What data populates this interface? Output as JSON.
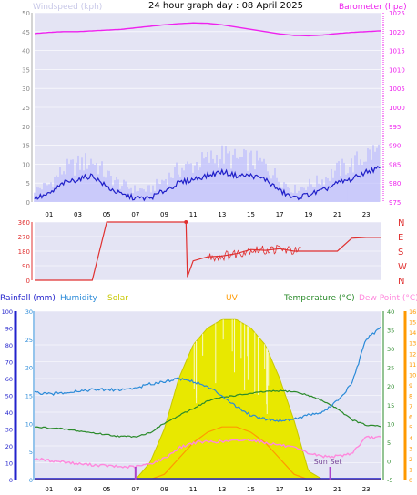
{
  "title": "24 hour graph day : 08 April 2025",
  "panel_wind": {
    "left_label": "Windspeed (kph)",
    "right_label": "Barometer (hpa)",
    "left_ticks": [
      "0",
      "5",
      "10",
      "15",
      "20",
      "25",
      "30",
      "35",
      "40",
      "45",
      "50"
    ],
    "right_ticks": [
      "975",
      "980",
      "985",
      "990",
      "995",
      "1000",
      "1005",
      "1010",
      "1015",
      "1020",
      "1025"
    ]
  },
  "panel_dir": {
    "left_ticks": [
      "0",
      "90",
      "180",
      "270",
      "360"
    ],
    "compass": [
      "N",
      "W",
      "S",
      "E",
      "N"
    ]
  },
  "panel_bottom": {
    "legend": [
      "Rainfall (mm)",
      "Humidity",
      "Solar",
      "UV",
      "Temperature (°C)",
      "Dew Point (°C)"
    ],
    "rain_ticks": [
      "0",
      "10",
      "20",
      "30",
      "40",
      "50",
      "60",
      "70",
      "80",
      "90",
      "100"
    ],
    "hum_ticks": [
      "0",
      "5",
      "10",
      "15",
      "20",
      "25",
      "30"
    ],
    "temp_ticks": [
      "-5",
      "0",
      "5",
      "10",
      "15",
      "20",
      "25",
      "30",
      "35",
      "40"
    ],
    "dew_ticks": [
      "0",
      "1",
      "2",
      "3",
      "4",
      "5",
      "6",
      "7",
      "8",
      "9",
      "10",
      "11",
      "12",
      "13",
      "14",
      "15",
      "16"
    ],
    "sun_set_label": "Sun Set"
  },
  "x_ticks": [
    "01",
    "03",
    "05",
    "07",
    "09",
    "11",
    "13",
    "15",
    "17",
    "19",
    "21",
    "23"
  ],
  "colors": {
    "wind_avg": "#1f1fc8",
    "wind_gust": "#b8b8ff",
    "barometer": "#ee22ee",
    "direction": "#e03030",
    "temperature": "#2a8a2a",
    "humidity": "#2a8ad8",
    "dew_point": "#ff88dd",
    "solar": "#e8e800",
    "uv": "#ff9900",
    "rain": "#2222cc"
  },
  "chart_data": [
    {
      "type": "line",
      "x": [
        0,
        1,
        2,
        3,
        4,
        5,
        6,
        7,
        8,
        9,
        10,
        11,
        12,
        13,
        14,
        15,
        16,
        17,
        18,
        19,
        20,
        21,
        22,
        23,
        24
      ],
      "series": [
        {
          "name": "Windspeed (kph)",
          "values": [
            1,
            2,
            5,
            6,
            7,
            4,
            2,
            1,
            1,
            3,
            5,
            6,
            7,
            8,
            7,
            7,
            6,
            3,
            1,
            2,
            3,
            5,
            6,
            8,
            9
          ]
        },
        {
          "name": "Barometer (hpa)",
          "values": [
            1019.5,
            1019.8,
            1020,
            1020,
            1020.2,
            1020.4,
            1020.6,
            1021,
            1021.4,
            1021.8,
            1022.1,
            1022.3,
            1022.2,
            1021.8,
            1021.2,
            1020.6,
            1020,
            1019.4,
            1019,
            1018.9,
            1019.1,
            1019.5,
            1019.8,
            1020,
            1020.2
          ]
        }
      ],
      "ylim": [
        0,
        50
      ],
      "y2lim": [
        975,
        1025
      ]
    },
    {
      "type": "line",
      "x": [
        0,
        1,
        2,
        3,
        4,
        5,
        6,
        7,
        8,
        9,
        10,
        10.5,
        10.6,
        11,
        12,
        13,
        14,
        15,
        16,
        17,
        18,
        19,
        20,
        21,
        22,
        23,
        24
      ],
      "series": [
        {
          "name": "Wind Direction",
          "values": [
            0,
            0,
            0,
            0,
            0,
            360,
            360,
            360,
            360,
            360,
            360,
            360,
            20,
            120,
            145,
            150,
            165,
            190,
            185,
            195,
            180,
            180,
            180,
            180,
            260,
            265,
            265
          ]
        }
      ],
      "ylim": [
        0,
        360
      ]
    },
    {
      "type": "line",
      "x": [
        0,
        1,
        2,
        3,
        4,
        5,
        6,
        7,
        8,
        9,
        10,
        11,
        12,
        13,
        14,
        15,
        16,
        17,
        18,
        19,
        20,
        21,
        22,
        23,
        24
      ],
      "series": [
        {
          "name": "Humidity",
          "values": [
            15.5,
            15.2,
            15.5,
            15.8,
            16,
            16,
            16,
            16.3,
            17,
            17.5,
            18,
            17.5,
            16.5,
            15,
            13,
            11.5,
            10.8,
            10.5,
            10.8,
            11.5,
            12,
            14,
            17,
            25,
            27
          ]
        },
        {
          "name": "Temperature (°C)",
          "values": [
            9,
            8.8,
            8.5,
            8,
            7.5,
            7,
            6.5,
            6.5,
            7.5,
            10,
            12,
            14,
            16,
            17,
            17.5,
            18,
            18.5,
            18.7,
            18.5,
            17.5,
            16,
            14,
            11,
            9.5,
            9.2
          ]
        },
        {
          "name": "Dew Point (°C)",
          "values": [
            2,
            1.8,
            1.7,
            1.5,
            1.4,
            1.3,
            1.2,
            1.2,
            1.5,
            2,
            3,
            3.5,
            3.6,
            3.6,
            3.7,
            3.8,
            3.5,
            3.3,
            3,
            2.5,
            2.2,
            2.2,
            2.5,
            4,
            4
          ]
        },
        {
          "name": "Solar",
          "values": [
            0,
            0,
            0,
            0,
            0,
            0,
            0,
            0,
            10,
            30,
            60,
            80,
            90,
            95,
            95,
            90,
            80,
            60,
            35,
            5,
            0,
            0,
            0,
            0,
            0
          ]
        },
        {
          "name": "UV",
          "values": [
            0,
            0,
            0,
            0,
            0,
            0,
            0,
            0,
            0,
            0.5,
            2,
            3.5,
            4.5,
            5,
            5,
            4.5,
            3.5,
            2,
            0.5,
            0,
            0,
            0,
            0,
            0,
            0
          ]
        },
        {
          "name": "Rainfall (mm)",
          "values": [
            0,
            0,
            0,
            0,
            0,
            0,
            0,
            0,
            0,
            0,
            0,
            0,
            0,
            0,
            0,
            0,
            0,
            0,
            0,
            0,
            0,
            0,
            0,
            0,
            0
          ]
        }
      ],
      "rain_ylim": [
        0,
        100
      ],
      "humidity_ylim": [
        0,
        30
      ],
      "temp_ylim": [
        -5,
        40
      ],
      "dew_ylim": [
        0,
        16
      ],
      "solar_ylim": [
        0,
        100
      ],
      "uv_ylim": [
        0,
        16
      ],
      "sun_rise_hour": 7,
      "sun_set_hour": 20.5
    }
  ]
}
